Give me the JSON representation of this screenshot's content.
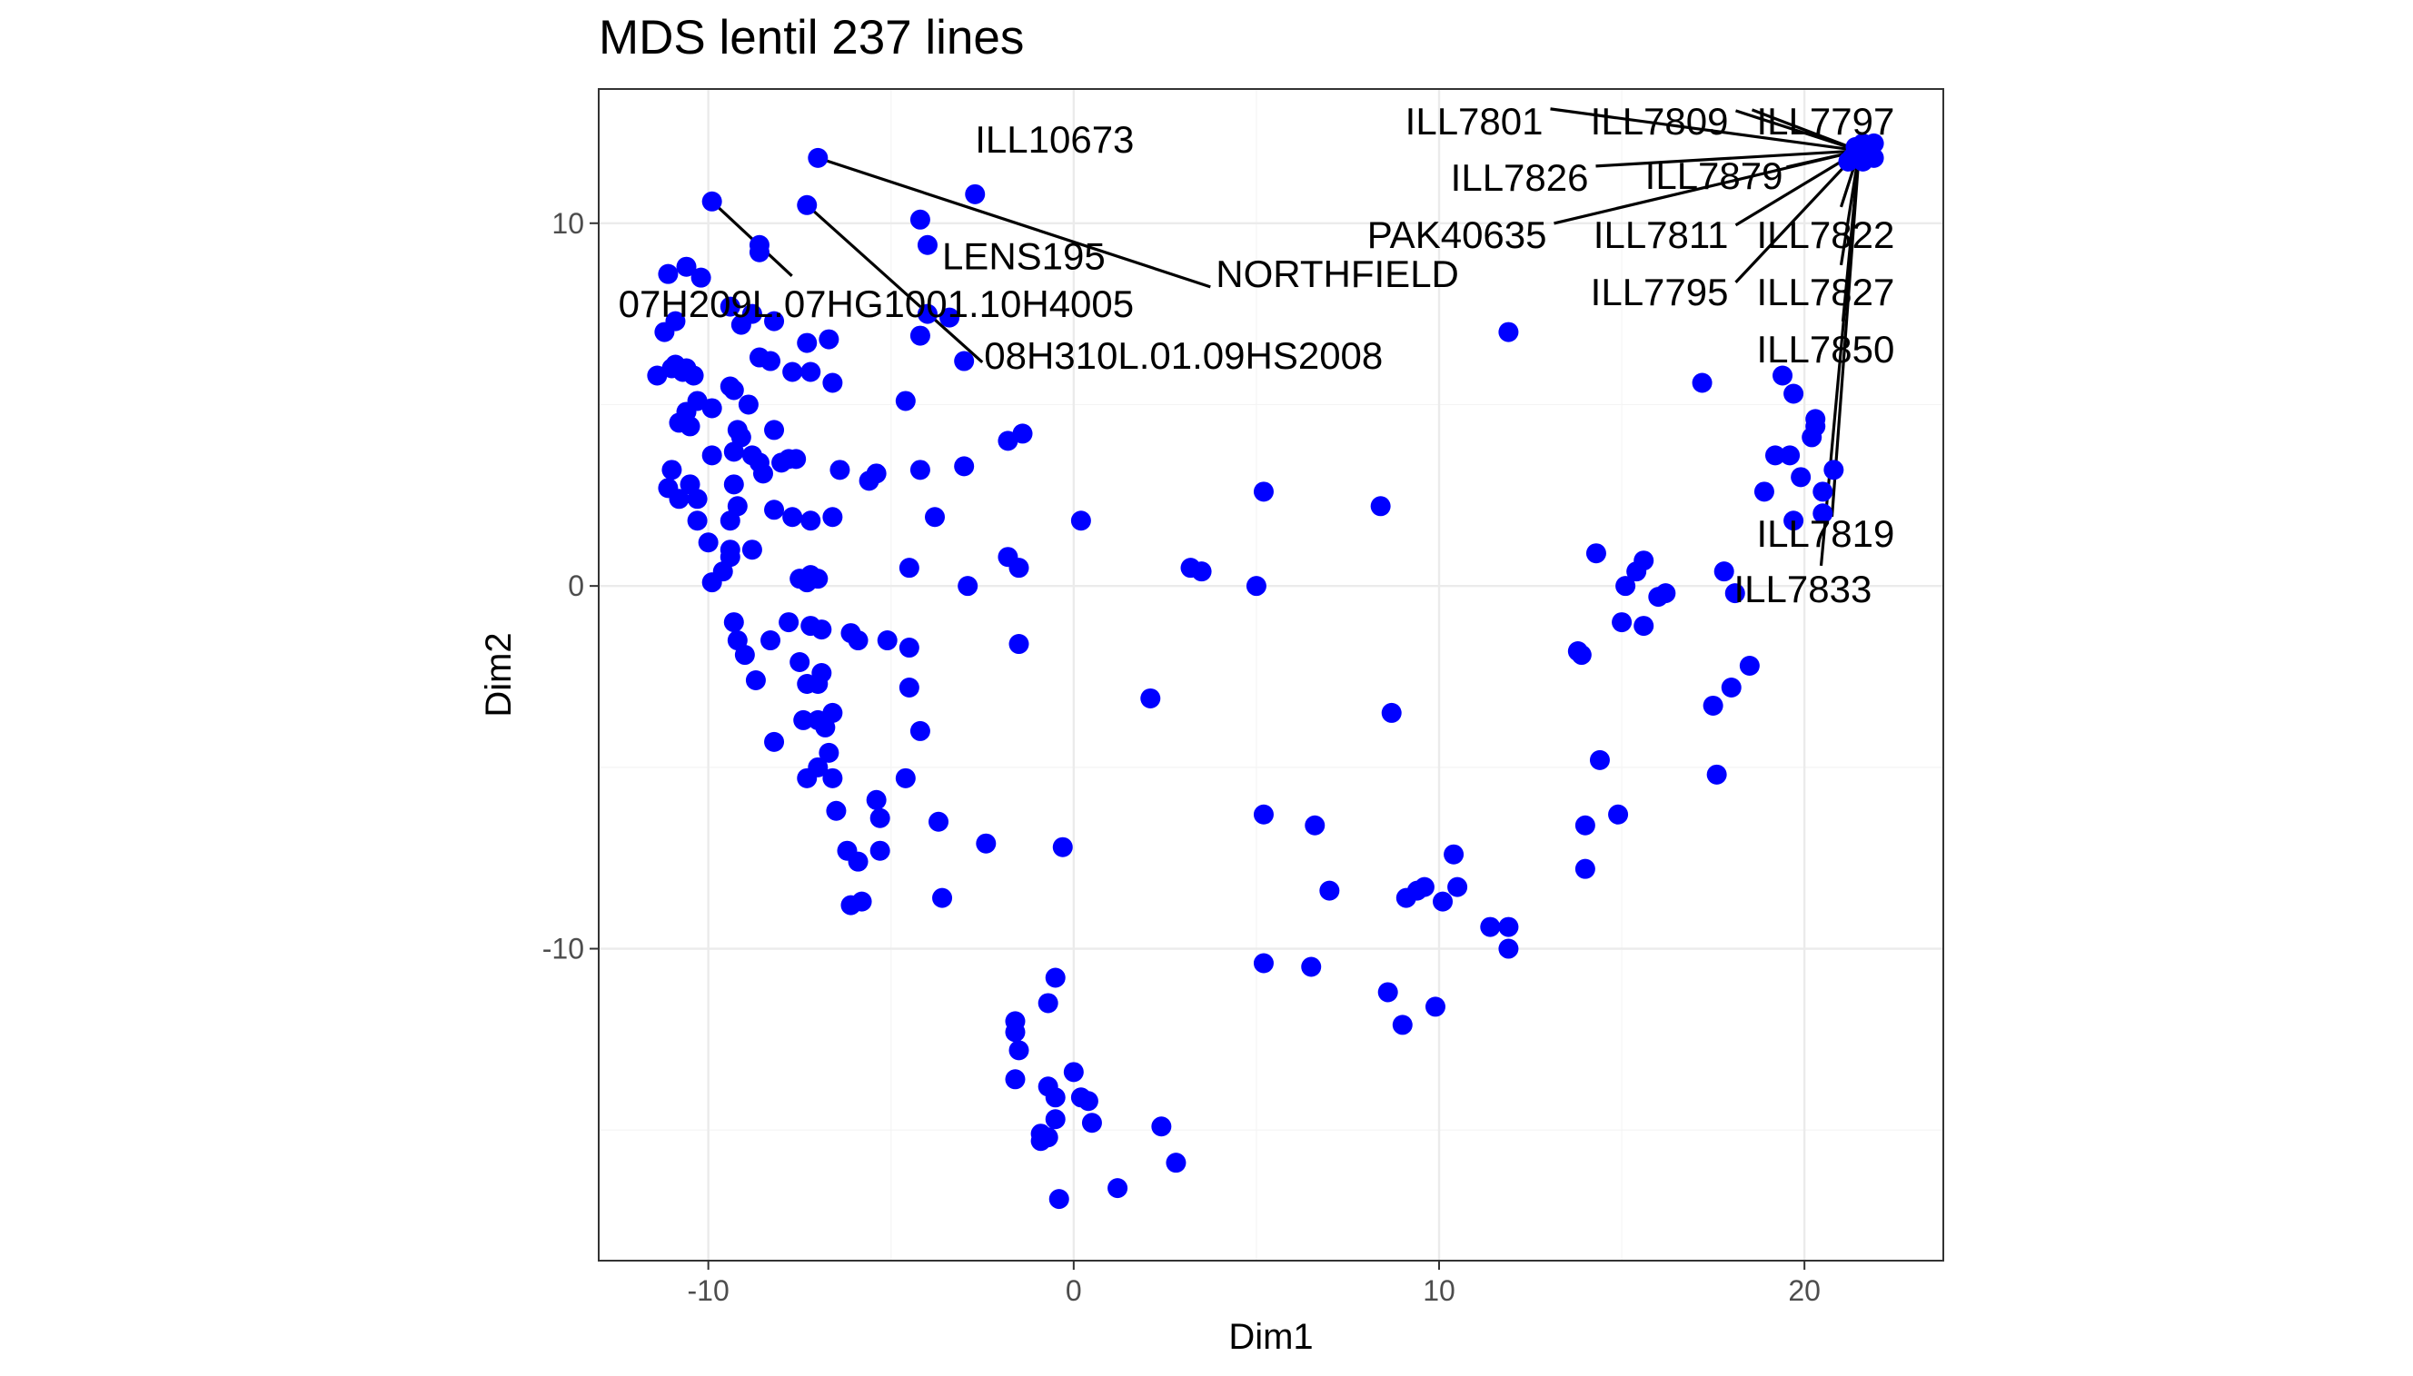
{
  "chart_data": {
    "type": "scatter",
    "title": "MDS lentil 237 lines",
    "xlabel": "Dim1",
    "ylabel": "Dim2",
    "xlim": [
      -13.0,
      23.8
    ],
    "ylim": [
      -18.6,
      13.7
    ],
    "x_ticks": [
      -10,
      0,
      10,
      20
    ],
    "x_tick_labels": [
      "-10",
      "0",
      "10",
      "20"
    ],
    "y_ticks": [
      -10,
      0,
      10
    ],
    "y_tick_labels": [
      "-10",
      "0",
      "10"
    ],
    "grid": true,
    "legend": "none",
    "point_color": "#0000ff",
    "points": [
      [
        -7.0,
        11.8
      ],
      [
        -9.9,
        10.6
      ],
      [
        -7.3,
        10.5
      ],
      [
        -4.2,
        10.1
      ],
      [
        -4.0,
        9.4
      ],
      [
        -2.7,
        10.8
      ],
      [
        -8.6,
        9.4
      ],
      [
        -8.6,
        9.2
      ],
      [
        -11.1,
        8.6
      ],
      [
        -10.6,
        8.8
      ],
      [
        -10.2,
        8.5
      ],
      [
        -10.9,
        7.3
      ],
      [
        -11.2,
        7.0
      ],
      [
        -9.4,
        7.7
      ],
      [
        -8.2,
        7.3
      ],
      [
        -9.1,
        7.2
      ],
      [
        -8.8,
        7.5
      ],
      [
        -4.0,
        7.5
      ],
      [
        -3.4,
        7.4
      ],
      [
        -4.2,
        6.9
      ],
      [
        -7.3,
        6.7
      ],
      [
        -6.7,
        6.8
      ],
      [
        -3.0,
        6.2
      ],
      [
        -10.9,
        6.1
      ],
      [
        -11.0,
        6.0
      ],
      [
        -10.6,
        6.0
      ],
      [
        -10.7,
        5.9
      ],
      [
        -11.4,
        5.8
      ],
      [
        -10.4,
        5.8
      ],
      [
        -8.6,
        6.3
      ],
      [
        -8.3,
        6.2
      ],
      [
        -7.7,
        5.9
      ],
      [
        -7.2,
        5.9
      ],
      [
        -6.6,
        5.6
      ],
      [
        -9.4,
        5.5
      ],
      [
        -9.3,
        5.4
      ],
      [
        -8.9,
        5.0
      ],
      [
        -10.3,
        5.1
      ],
      [
        -10.6,
        4.8
      ],
      [
        -10.8,
        4.5
      ],
      [
        -10.5,
        4.4
      ],
      [
        -9.9,
        4.9
      ],
      [
        -4.6,
        5.1
      ],
      [
        -9.2,
        4.3
      ],
      [
        -9.1,
        4.1
      ],
      [
        -9.3,
        3.7
      ],
      [
        -8.8,
        3.6
      ],
      [
        -8.2,
        4.3
      ],
      [
        -7.8,
        3.5
      ],
      [
        -7.6,
        3.5
      ],
      [
        -8.6,
        3.4
      ],
      [
        -8.5,
        3.1
      ],
      [
        -8.0,
        3.4
      ],
      [
        -9.9,
        3.6
      ],
      [
        -11.0,
        3.2
      ],
      [
        -6.4,
        3.2
      ],
      [
        -5.4,
        3.1
      ],
      [
        -5.6,
        2.9
      ],
      [
        -4.2,
        3.2
      ],
      [
        -3.0,
        3.3
      ],
      [
        -1.8,
        4.0
      ],
      [
        -1.4,
        4.2
      ],
      [
        -9.3,
        2.8
      ],
      [
        -11.1,
        2.7
      ],
      [
        -10.5,
        2.8
      ],
      [
        -10.8,
        2.4
      ],
      [
        -10.3,
        2.4
      ],
      [
        -9.2,
        2.2
      ],
      [
        -8.2,
        2.1
      ],
      [
        -7.7,
        1.9
      ],
      [
        -7.2,
        1.8
      ],
      [
        -6.6,
        1.9
      ],
      [
        -10.3,
        1.8
      ],
      [
        -9.4,
        1.8
      ],
      [
        -3.8,
        1.9
      ],
      [
        -10.0,
        1.2
      ],
      [
        -9.4,
        1.0
      ],
      [
        -8.8,
        1.0
      ],
      [
        -9.4,
        0.8
      ],
      [
        -9.6,
        0.4
      ],
      [
        -9.9,
        0.1
      ],
      [
        -4.5,
        0.5
      ],
      [
        -7.5,
        0.2
      ],
      [
        -7.2,
        0.3
      ],
      [
        -7.3,
        0.1
      ],
      [
        -7.0,
        0.2
      ],
      [
        -2.9,
        0.0
      ],
      [
        -1.8,
        0.8
      ],
      [
        -1.5,
        0.5
      ],
      [
        0.2,
        1.8
      ],
      [
        3.2,
        0.5
      ],
      [
        3.5,
        0.4
      ],
      [
        5.0,
        0.0
      ],
      [
        5.2,
        2.6
      ],
      [
        8.4,
        2.2
      ],
      [
        11.9,
        7.0
      ],
      [
        -9.3,
        -1.0
      ],
      [
        -7.8,
        -1.0
      ],
      [
        -7.2,
        -1.1
      ],
      [
        -6.9,
        -1.2
      ],
      [
        -6.1,
        -1.3
      ],
      [
        -5.9,
        -1.5
      ],
      [
        -5.1,
        -1.5
      ],
      [
        -4.5,
        -1.7
      ],
      [
        -9.2,
        -1.5
      ],
      [
        -8.3,
        -1.5
      ],
      [
        -1.5,
        -1.6
      ],
      [
        -9.0,
        -1.9
      ],
      [
        -7.5,
        -2.1
      ],
      [
        -6.9,
        -2.4
      ],
      [
        -8.7,
        -2.6
      ],
      [
        -7.3,
        -2.7
      ],
      [
        -7.0,
        -2.7
      ],
      [
        -4.5,
        -2.8
      ],
      [
        -7.4,
        -3.7
      ],
      [
        -7.0,
        -3.7
      ],
      [
        -6.6,
        -3.5
      ],
      [
        -6.8,
        -3.9
      ],
      [
        -4.2,
        -4.0
      ],
      [
        -8.2,
        -4.3
      ],
      [
        -6.7,
        -4.6
      ],
      [
        -7.0,
        -5.0
      ],
      [
        -7.3,
        -5.3
      ],
      [
        -6.6,
        -5.3
      ],
      [
        -4.6,
        -5.3
      ],
      [
        -5.4,
        -5.9
      ],
      [
        -6.5,
        -6.2
      ],
      [
        -5.3,
        -6.4
      ],
      [
        -3.7,
        -6.5
      ],
      [
        -6.2,
        -7.3
      ],
      [
        -5.9,
        -7.6
      ],
      [
        -5.3,
        -7.3
      ],
      [
        -2.4,
        -7.1
      ],
      [
        -0.3,
        -7.2
      ],
      [
        -6.1,
        -8.8
      ],
      [
        -5.8,
        -8.7
      ],
      [
        -3.6,
        -8.6
      ],
      [
        2.1,
        -3.1
      ],
      [
        8.7,
        -3.5
      ],
      [
        5.2,
        -6.3
      ],
      [
        6.6,
        -6.6
      ],
      [
        7.0,
        -8.4
      ],
      [
        9.4,
        -8.4
      ],
      [
        9.6,
        -8.3
      ],
      [
        9.1,
        -8.6
      ],
      [
        10.4,
        -7.4
      ],
      [
        10.5,
        -8.3
      ],
      [
        10.1,
        -8.7
      ],
      [
        11.4,
        -9.4
      ],
      [
        11.9,
        -9.4
      ],
      [
        11.9,
        -10.0
      ],
      [
        5.2,
        -10.4
      ],
      [
        6.5,
        -10.5
      ],
      [
        8.6,
        -11.2
      ],
      [
        9.0,
        -12.1
      ],
      [
        9.9,
        -11.6
      ],
      [
        -0.5,
        -10.8
      ],
      [
        -0.7,
        -11.5
      ],
      [
        -1.6,
        -12.0
      ],
      [
        -1.6,
        -12.3
      ],
      [
        -1.5,
        -12.8
      ],
      [
        -1.6,
        -13.6
      ],
      [
        0.0,
        -13.4
      ],
      [
        -0.7,
        -13.8
      ],
      [
        -0.5,
        -14.1
      ],
      [
        0.2,
        -14.1
      ],
      [
        0.4,
        -14.2
      ],
      [
        -0.5,
        -14.7
      ],
      [
        0.5,
        -14.8
      ],
      [
        -0.9,
        -15.1
      ],
      [
        -0.7,
        -15.2
      ],
      [
        -0.9,
        -15.3
      ],
      [
        2.4,
        -14.9
      ],
      [
        2.8,
        -15.9
      ],
      [
        1.2,
        -16.6
      ],
      [
        -0.4,
        -16.9
      ],
      [
        14.3,
        0.9
      ],
      [
        15.6,
        0.7
      ],
      [
        15.4,
        0.4
      ],
      [
        15.1,
        0.0
      ],
      [
        16.2,
        -0.2
      ],
      [
        16.0,
        -0.3
      ],
      [
        17.8,
        0.4
      ],
      [
        18.1,
        -0.2
      ],
      [
        15.0,
        -1.0
      ],
      [
        15.6,
        -1.1
      ],
      [
        13.8,
        -1.8
      ],
      [
        13.9,
        -1.9
      ],
      [
        18.5,
        -2.2
      ],
      [
        18.0,
        -2.8
      ],
      [
        17.5,
        -3.3
      ],
      [
        14.4,
        -4.8
      ],
      [
        17.6,
        -5.2
      ],
      [
        14.9,
        -6.3
      ],
      [
        14.0,
        -6.6
      ],
      [
        14.0,
        -7.8
      ],
      [
        17.2,
        5.6
      ],
      [
        19.4,
        5.8
      ],
      [
        19.7,
        5.3
      ],
      [
        20.3,
        4.6
      ],
      [
        20.2,
        4.1
      ],
      [
        20.3,
        4.4
      ],
      [
        19.2,
        3.6
      ],
      [
        19.6,
        3.6
      ],
      [
        20.8,
        3.2
      ],
      [
        19.9,
        3.0
      ],
      [
        20.5,
        2.6
      ],
      [
        18.9,
        2.6
      ],
      [
        20.5,
        2.0
      ],
      [
        19.7,
        1.8
      ],
      [
        21.4,
        12.1
      ],
      [
        21.6,
        12.2
      ],
      [
        21.9,
        12.2
      ],
      [
        21.3,
        11.8
      ],
      [
        21.6,
        11.7
      ],
      [
        21.9,
        11.8
      ],
      [
        21.2,
        11.7
      ]
    ],
    "labels": [
      {
        "text": "ILL10673",
        "x": -2.7,
        "y": 10.8
      },
      {
        "text": "LENS195",
        "x": -4.0,
        "y": 9.4
      },
      {
        "text": "NORTHFIELD",
        "x": -7.0,
        "y": 11.8
      },
      {
        "text": "07H209L.07HG1001.10H4005",
        "x": -9.9,
        "y": 10.6
      },
      {
        "text": "08H310L.01.09HS2008",
        "x": -7.3,
        "y": 10.5
      },
      {
        "text": "ILL7801",
        "x": 21.5,
        "y": 12.0
      },
      {
        "text": "ILL7809",
        "x": 21.5,
        "y": 12.0
      },
      {
        "text": "ILL7797",
        "x": 21.5,
        "y": 12.0
      },
      {
        "text": "ILL7826",
        "x": 21.5,
        "y": 12.0
      },
      {
        "text": "ILL7879",
        "x": 21.5,
        "y": 12.0
      },
      {
        "text": "PAK40635",
        "x": 21.5,
        "y": 12.0
      },
      {
        "text": "ILL7811",
        "x": 21.5,
        "y": 12.0
      },
      {
        "text": "ILL7822",
        "x": 21.5,
        "y": 12.0
      },
      {
        "text": "ILL7795",
        "x": 21.5,
        "y": 12.0
      },
      {
        "text": "ILL7827",
        "x": 21.5,
        "y": 12.0
      },
      {
        "text": "ILL7850",
        "x": 21.5,
        "y": 12.0
      },
      {
        "text": "ILL7819",
        "x": 21.5,
        "y": 12.0
      },
      {
        "text": "ILL7833",
        "x": 21.5,
        "y": 12.0
      }
    ]
  }
}
